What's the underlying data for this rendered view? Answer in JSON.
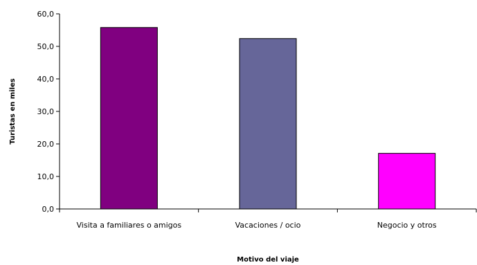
{
  "chart_data": {
    "type": "bar",
    "title": "",
    "categories": [
      "Visita a familiares o amigos",
      "Vacaciones / ocio",
      "Negocio y otros"
    ],
    "values": [
      55.8,
      52.4,
      17.1
    ],
    "colors": [
      "#800080",
      "#666699",
      "#FF00FF"
    ],
    "xlabel": "Motivo del viaje",
    "ylabel": "Turistas en miles",
    "ylim": [
      0,
      60
    ],
    "ticks": [
      {
        "value": 0,
        "label": "0,0"
      },
      {
        "value": 10,
        "label": "10,0"
      },
      {
        "value": 20,
        "label": "20,0"
      },
      {
        "value": 30,
        "label": "30,0"
      },
      {
        "value": 40,
        "label": "40,0"
      },
      {
        "value": 50,
        "label": "50,0"
      },
      {
        "value": 60,
        "label": "60,0"
      }
    ],
    "grid": false,
    "legend": "none"
  }
}
